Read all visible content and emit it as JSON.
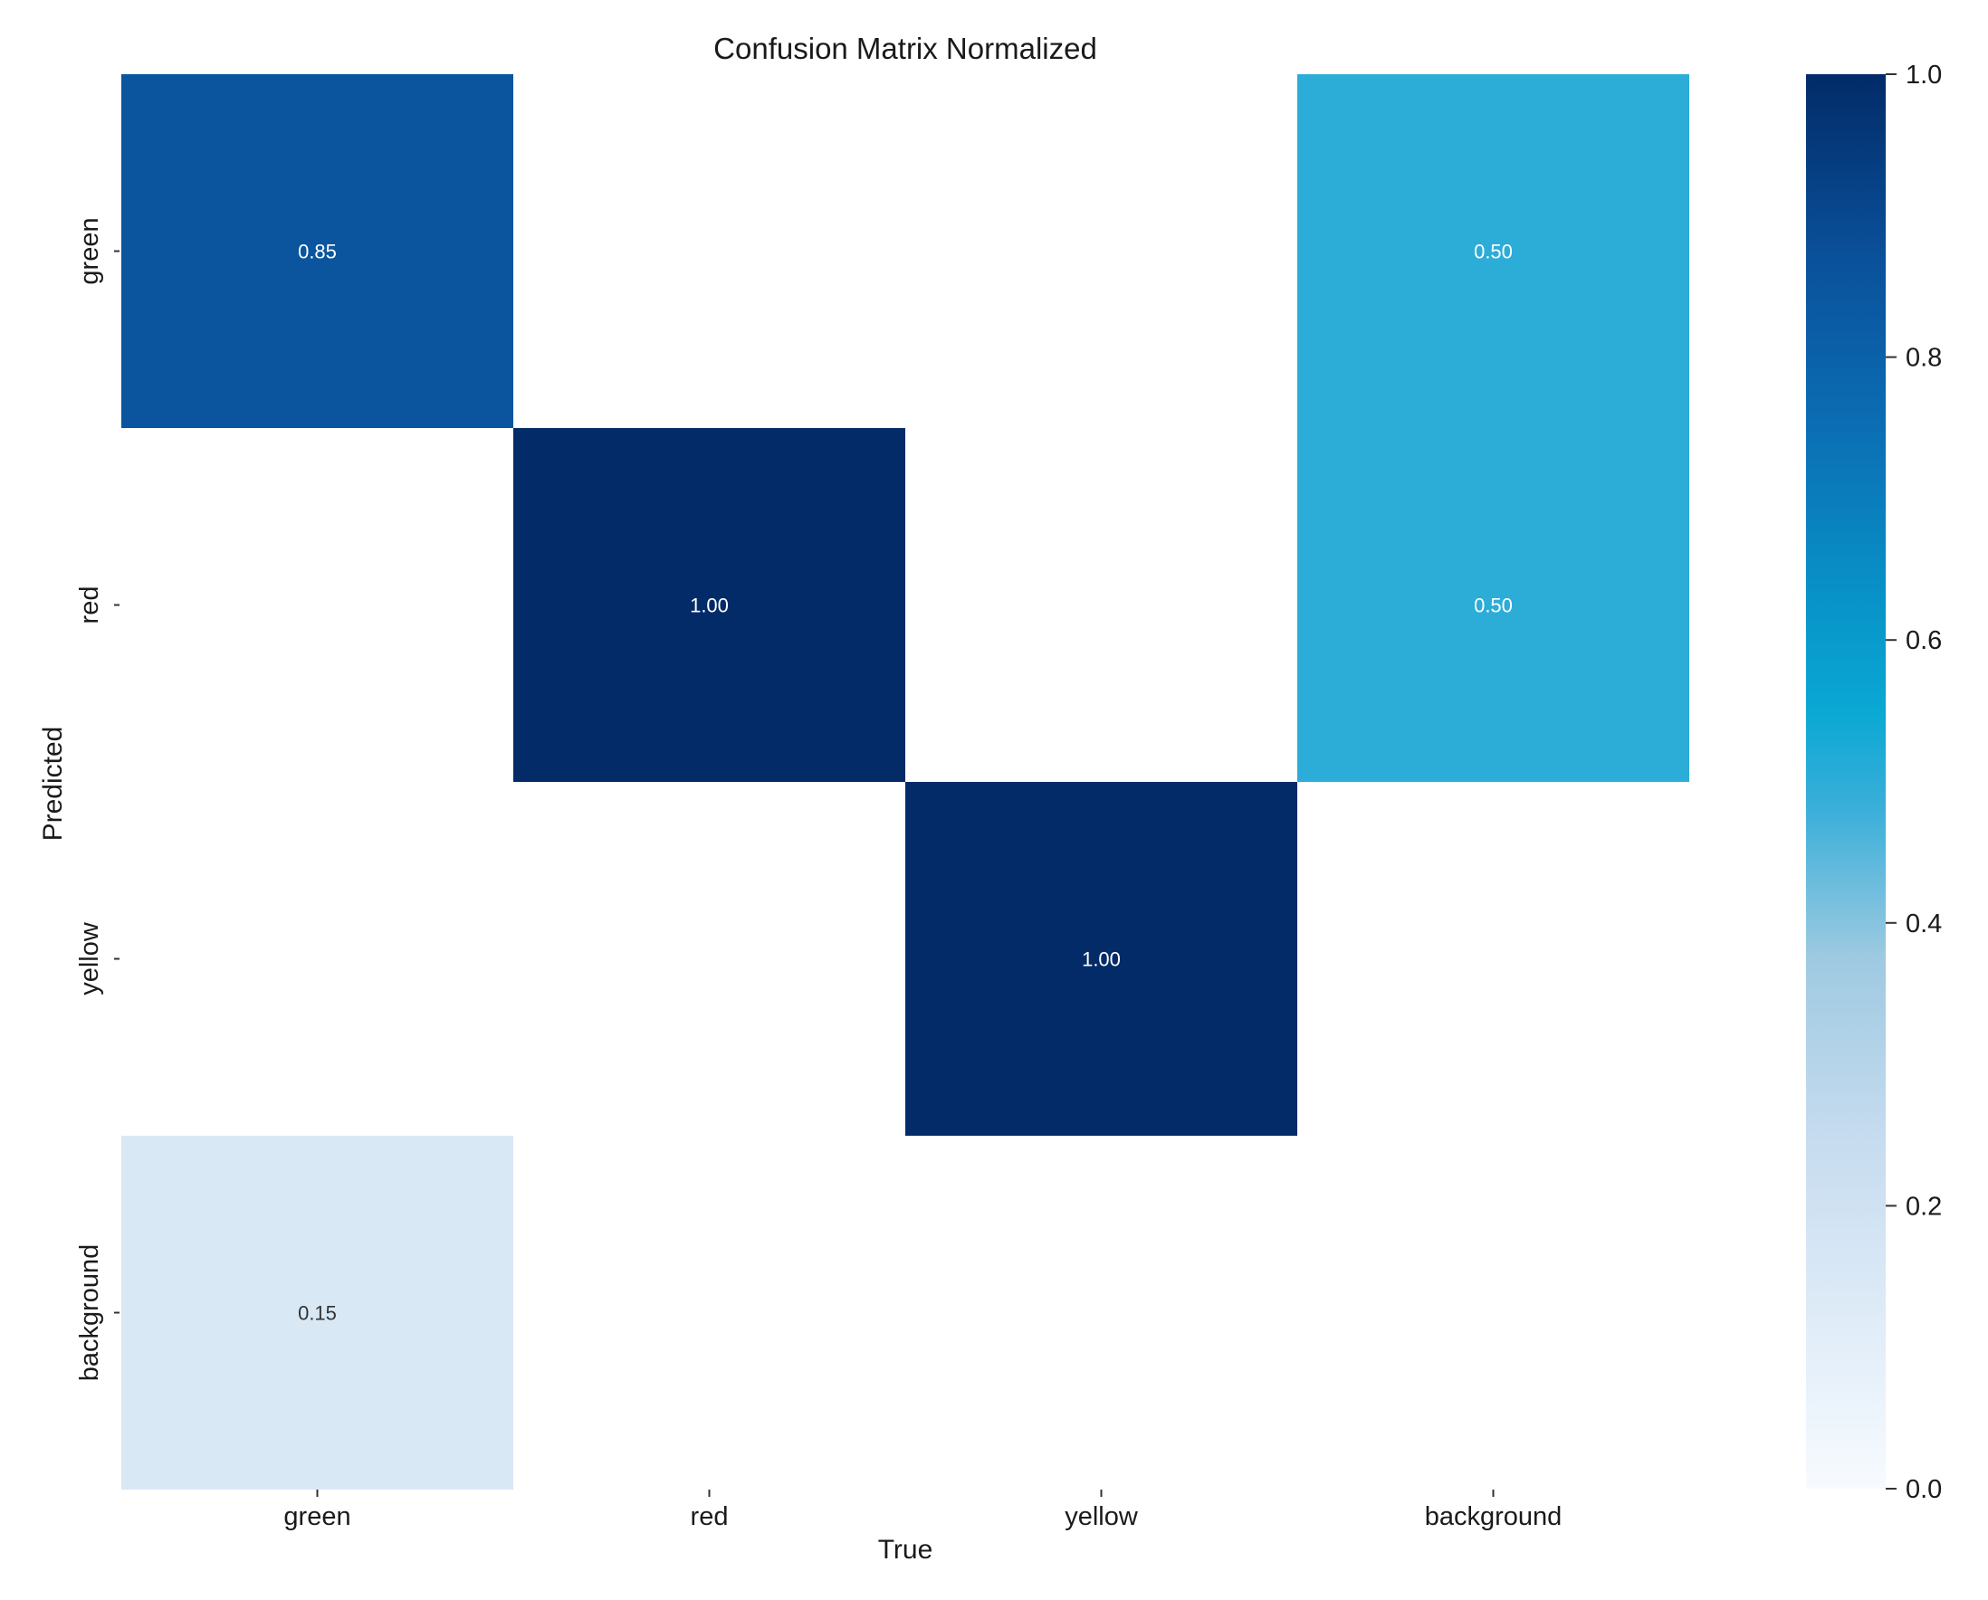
{
  "chart_data": {
    "type": "heatmap",
    "title": "Confusion Matrix Normalized",
    "xlabel": "True",
    "ylabel": "Predicted",
    "x_categories": [
      "green",
      "red",
      "yellow",
      "background"
    ],
    "y_categories": [
      "green",
      "red",
      "yellow",
      "background"
    ],
    "values": [
      [
        0.85,
        null,
        null,
        0.5
      ],
      [
        null,
        1.0,
        null,
        0.5
      ],
      [
        null,
        null,
        1.0,
        null
      ],
      [
        0.15,
        null,
        null,
        null
      ]
    ],
    "cell_labels": [
      [
        "0.85",
        "",
        "",
        "0.50"
      ],
      [
        "",
        "1.00",
        "",
        "0.50"
      ],
      [
        "",
        "",
        "1.00",
        ""
      ],
      [
        "0.15",
        "",
        "",
        ""
      ]
    ],
    "colorbar": {
      "range": [
        0.0,
        1.0
      ],
      "ticks": [
        0.0,
        0.2,
        0.4,
        0.6,
        0.8,
        1.0
      ],
      "tick_labels": [
        "0.0",
        "0.2",
        "0.4",
        "0.6",
        "0.8",
        "1.0"
      ],
      "colormap": "Blues"
    },
    "grid": false
  }
}
